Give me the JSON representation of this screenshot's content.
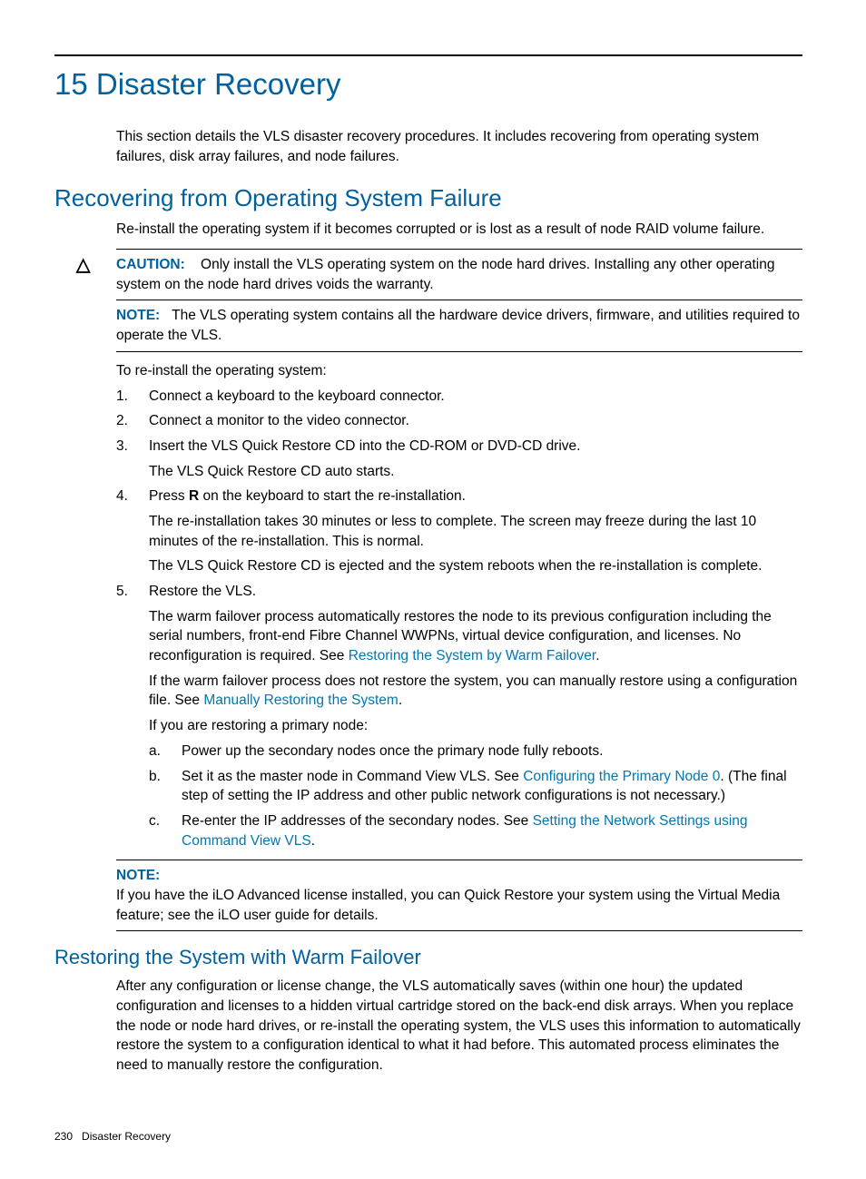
{
  "colors": {
    "heading": "#00619e",
    "link": "#0078b0",
    "text": "#000000",
    "background": "#ffffff",
    "rule": "#000000"
  },
  "typography": {
    "h1_fontsize": 33,
    "h2_fontsize": 26,
    "h3_fontsize": 22,
    "body_fontsize": 15.5,
    "footer_fontsize": 12,
    "heading_weight": 300
  },
  "chapter": {
    "number_title": "15 Disaster Recovery",
    "intro": "This section details the VLS disaster recovery procedures. It includes recovering from operating system failures, disk array failures, and node failures."
  },
  "section1": {
    "title": "Recovering from Operating System Failure",
    "intro": "Re-install the operating system if it becomes corrupted or is lost as a result of node RAID volume failure.",
    "caution": {
      "label": "CAUTION:",
      "icon": "△",
      "text": "Only install the VLS operating system on the node hard drives. Installing any other operating system on the node hard drives voids the warranty."
    },
    "note1": {
      "label": "NOTE:",
      "text": "The VLS operating system contains all the hardware device drivers, firmware, and utilities required to operate the VLS."
    },
    "lead": "To re-install the operating system:",
    "steps": {
      "s1": "Connect a keyboard to the keyboard connector.",
      "s2": "Connect a monitor to the video connector.",
      "s3": "Insert the VLS Quick Restore CD into the CD-ROM or DVD-CD drive.",
      "s3_p1": "The VLS Quick Restore CD auto starts.",
      "s4_pre": "Press ",
      "s4_key": "R",
      "s4_post": " on the keyboard to start the re-installation.",
      "s4_p1": "The re-installation takes 30 minutes or less to complete. The screen may freeze during the last 10 minutes of the re-installation. This is normal.",
      "s4_p2": "The VLS Quick Restore CD is ejected and the system reboots when the re-installation is complete.",
      "s5": "Restore the VLS.",
      "s5_p1_pre": "The warm failover process automatically restores the node to its previous configuration including the serial numbers, front-end Fibre Channel WWPNs, virtual device configuration, and licenses. No reconfiguration is required. See ",
      "s5_p1_link": "Restoring the System by Warm Failover",
      "s5_p1_post": ".",
      "s5_p2_pre": "If the warm failover process does not restore the system, you can manually restore using a configuration file. See ",
      "s5_p2_link": "Manually Restoring the System",
      "s5_p2_post": ".",
      "s5_p3": "If you are restoring a primary node:",
      "sub": {
        "a": "Power up the secondary nodes once the primary node fully reboots.",
        "b_pre": "Set it as the master node in Command View VLS. See ",
        "b_link": "Configuring the Primary Node 0",
        "b_post": ". (The final step of setting the IP address and other public network configurations is not necessary.)",
        "c_pre": "Re-enter the IP addresses of the secondary nodes. See ",
        "c_link": "Setting the Network Settings using Command View VLS",
        "c_post": "."
      }
    },
    "note2": {
      "label": "NOTE:",
      "text": "If you have the iLO Advanced license installed, you can Quick Restore your system using the Virtual Media feature; see the iLO user guide for details."
    }
  },
  "section2": {
    "title": "Restoring the System with Warm Failover",
    "p1": "After any configuration or license change, the VLS automatically saves (within one hour) the updated configuration and licenses to a hidden virtual cartridge stored on the back-end disk arrays. When you replace the node or node hard drives, or re-install the operating system, the VLS uses this information to automatically restore the system to a configuration identical to what it had before. This automated process eliminates the need to manually restore the configuration."
  },
  "footer": {
    "page": "230",
    "section": "Disaster Recovery"
  }
}
